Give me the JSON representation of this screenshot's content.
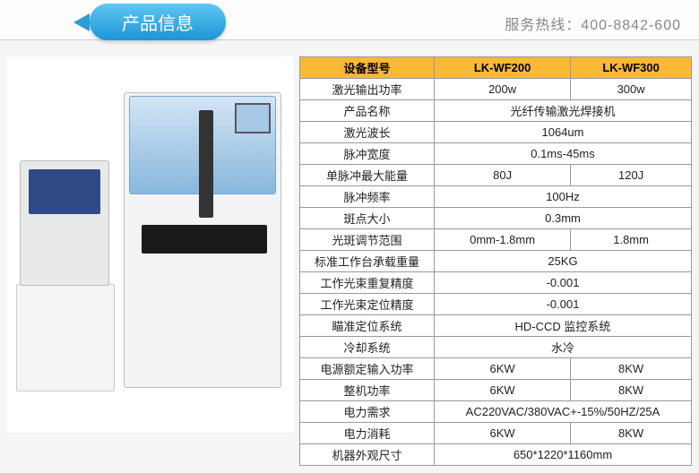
{
  "header": {
    "title": "产品信息",
    "hotline_label": "服务热线：",
    "hotline_number": "400-8842-600"
  },
  "colors": {
    "header_row_bg": "#f9b934",
    "ribbon_start": "#5fc7f2",
    "ribbon_end": "#1d94d6",
    "table_border": "#999999",
    "page_bg": "#f5f5f5"
  },
  "spec_table": {
    "header": {
      "param_label": "设备型号",
      "model_a": "LK-WF200",
      "model_b": "LK-WF300"
    },
    "rows": [
      {
        "label": "激光输出功率",
        "a": "200w",
        "b": "300w",
        "span": false
      },
      {
        "label": "产品名称",
        "val": "光纤传输激光焊接机",
        "span": true
      },
      {
        "label": "激光波长",
        "val": "1064um",
        "span": true
      },
      {
        "label": "脉冲宽度",
        "val": "0.1ms-45ms",
        "span": true
      },
      {
        "label": "单脉冲最大能量",
        "a": "80J",
        "b": "120J",
        "span": false
      },
      {
        "label": "脉冲频率",
        "val": "100Hz",
        "span": true
      },
      {
        "label": "斑点大小",
        "val": "0.3mm",
        "span": true
      },
      {
        "label": "光斑调节范围",
        "a": "0mm-1.8mm",
        "b": "1.8mm",
        "span": false
      },
      {
        "label": "标准工作台承载重量",
        "val": "25KG",
        "span": true
      },
      {
        "label": "工作光束重复精度",
        "val": "-0.001",
        "span": true
      },
      {
        "label": "工作光束定位精度",
        "val": "-0.001",
        "span": true
      },
      {
        "label": "瞄准定位系统",
        "val": "HD-CCD 监控系统",
        "span": true
      },
      {
        "label": "冷却系统",
        "val": "水冷",
        "span": true
      },
      {
        "label": "电源额定输入功率",
        "a": "6KW",
        "b": "8KW",
        "span": false
      },
      {
        "label": "整机功率",
        "a": "6KW",
        "b": "8KW",
        "span": false
      },
      {
        "label": "电力需求",
        "val": "AC220VAC/380VAC+-15%/50HZ/25A",
        "span": true
      },
      {
        "label": "电力消耗",
        "a": "6KW",
        "b": "8KW",
        "span": false
      },
      {
        "label": "机器外观尺寸",
        "val": "650*1220*1160mm",
        "span": true
      }
    ]
  }
}
